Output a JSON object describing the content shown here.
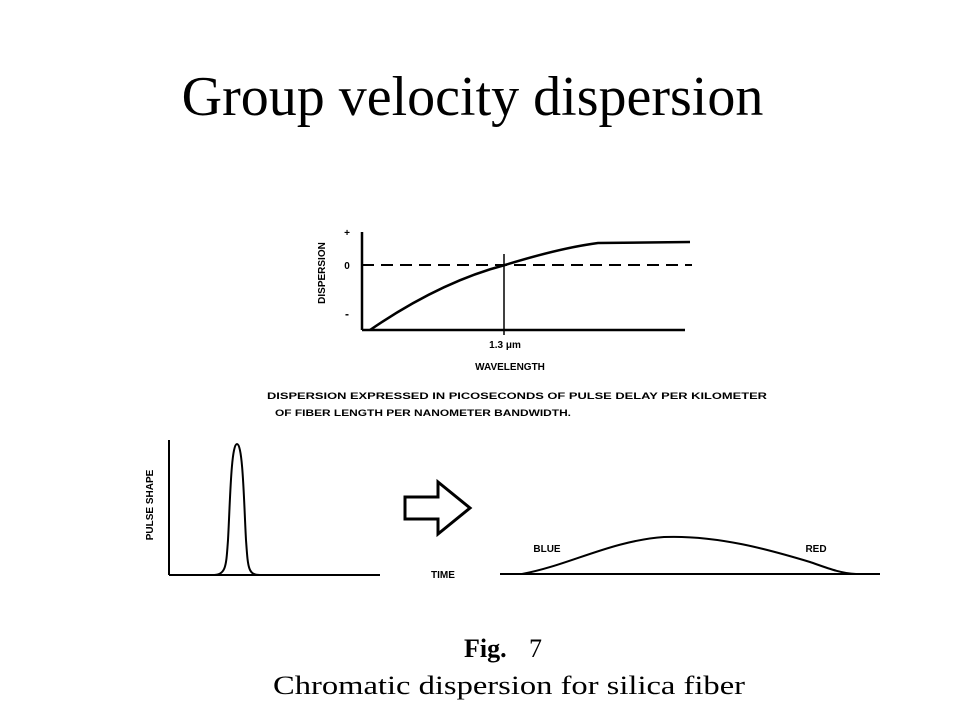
{
  "slide": {
    "title": "Group velocity dispersion"
  },
  "dispersion_plot": {
    "y_axis_label": "DISPERSION",
    "tick_plus": "+",
    "tick_zero": "0",
    "tick_minus": "-",
    "x_marker_label": "1.3 μm",
    "x_axis_label": "WAVELENGTH"
  },
  "note": {
    "line1": "DISPERSION EXPRESSED IN PICOSECONDS OF PULSE DELAY PER KILOMETER",
    "line2": "OF FIBER LENGTH PER NANOMETER BANDWIDTH."
  },
  "pulse_plot": {
    "y_axis_label": "PULSE SHAPE",
    "x_axis_label": "TIME",
    "blue_label": "BLUE",
    "red_label": "RED"
  },
  "caption": {
    "fig_label": "Fig.",
    "fig_number": "7",
    "text": "Chromatic dispersion for silica fiber"
  }
}
